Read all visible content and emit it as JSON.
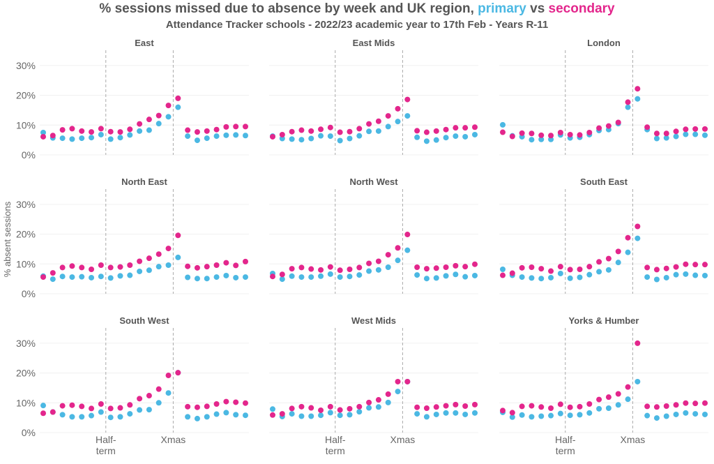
{
  "title_prefix": "% sessions missed due to absence by week and UK region, ",
  "title_primary": "primary",
  "title_vs": " vs ",
  "title_secondary": "secondary",
  "subtitle": "Attendance Tracker schools - 2022/23 academic year to 17th Feb - Years R-11",
  "colors": {
    "primary": "#4bb8e3",
    "secondary": "#e3268c",
    "title_text": "#555555",
    "divider": "#aaaaaa"
  },
  "chart_data": {
    "type": "scatter",
    "ylabel": "% absent sessions",
    "ylim": [
      0,
      30
    ],
    "yticks": [
      0,
      10,
      20,
      30
    ],
    "ytick_labels": [
      "0%",
      "10%",
      "20%",
      "30%"
    ],
    "x_week_range": [
      1,
      22
    ],
    "vertical_lines_at_week": [
      7.5,
      14.5
    ],
    "xtick_labels": [
      {
        "week": 7.5,
        "lines": [
          "Half-",
          "term"
        ]
      },
      {
        "week": 14.5,
        "lines": [
          "Xmas"
        ]
      }
    ],
    "weeks": [
      1,
      2,
      3,
      4,
      5,
      6,
      7,
      8,
      9,
      10,
      11,
      12,
      13,
      14,
      15,
      16,
      17,
      18,
      19,
      20,
      21,
      22
    ],
    "panels": [
      {
        "region": "East",
        "primary": [
          7.5,
          5.7,
          5.6,
          5.3,
          5.6,
          5.8,
          6.8,
          5.3,
          5.8,
          6.7,
          8.0,
          8.3,
          10.5,
          12.8,
          16.0,
          6.3,
          4.9,
          5.6,
          6.3,
          6.6,
          6.7,
          6.5
        ],
        "secondary": [
          6.1,
          6.5,
          8.4,
          8.8,
          8.0,
          7.7,
          8.8,
          7.8,
          7.7,
          8.6,
          10.4,
          11.9,
          13.2,
          16.6,
          19.0,
          8.3,
          7.7,
          8.0,
          8.5,
          9.4,
          9.5,
          9.5
        ]
      },
      {
        "region": "East Mids",
        "primary": [
          6.3,
          5.5,
          5.3,
          5.1,
          5.5,
          6.4,
          6.3,
          4.8,
          5.5,
          6.4,
          7.9,
          8.0,
          9.5,
          11.2,
          13.1,
          5.9,
          4.6,
          5.0,
          5.8,
          6.3,
          6.1,
          6.8
        ],
        "secondary": [
          6.1,
          6.8,
          7.8,
          8.3,
          8.0,
          8.6,
          9.2,
          7.6,
          7.8,
          8.8,
          10.4,
          11.3,
          13.1,
          15.5,
          18.6,
          8.1,
          7.6,
          8.0,
          8.5,
          9.1,
          9.1,
          9.3
        ]
      },
      {
        "region": "London",
        "primary": [
          10.1,
          6.4,
          6.1,
          5.1,
          5.2,
          5.2,
          6.7,
          5.7,
          5.9,
          6.8,
          8.2,
          8.5,
          10.5,
          16.0,
          18.8,
          8.5,
          5.5,
          5.7,
          6.2,
          6.9,
          6.9,
          6.6
        ],
        "secondary": [
          7.6,
          6.2,
          7.3,
          7.2,
          6.6,
          6.5,
          7.5,
          6.8,
          6.7,
          7.5,
          9.0,
          9.7,
          10.9,
          17.7,
          22.2,
          9.3,
          7.2,
          7.2,
          7.9,
          8.6,
          8.7,
          8.7
        ]
      },
      {
        "region": "North East",
        "primary": [
          5.9,
          4.9,
          5.8,
          5.6,
          5.7,
          5.4,
          5.8,
          5.3,
          6.0,
          6.2,
          7.5,
          7.9,
          9.1,
          9.6,
          12.2,
          5.5,
          5.1,
          5.1,
          5.6,
          6.1,
          5.4,
          5.6
        ],
        "secondary": [
          5.6,
          7.0,
          8.8,
          9.3,
          8.8,
          8.2,
          9.6,
          8.8,
          9.0,
          9.6,
          10.9,
          11.9,
          13.3,
          15.2,
          19.6,
          9.2,
          8.7,
          9.1,
          9.6,
          10.4,
          9.5,
          10.8
        ]
      },
      {
        "region": "North West",
        "primary": [
          6.8,
          4.9,
          5.9,
          5.6,
          5.6,
          5.9,
          6.6,
          5.6,
          5.8,
          6.3,
          7.6,
          8.0,
          8.9,
          11.2,
          14.6,
          6.3,
          5.1,
          5.3,
          6.0,
          6.5,
          5.7,
          6.1
        ],
        "secondary": [
          5.8,
          6.5,
          8.4,
          8.8,
          8.3,
          8.0,
          9.0,
          7.9,
          8.2,
          8.8,
          10.2,
          10.9,
          13.1,
          15.4,
          19.9,
          8.9,
          8.4,
          8.6,
          8.9,
          9.4,
          9.1,
          9.9
        ]
      },
      {
        "region": "South East",
        "primary": [
          8.2,
          6.2,
          5.6,
          5.3,
          5.1,
          5.4,
          6.8,
          5.2,
          5.5,
          6.4,
          7.4,
          8.0,
          10.5,
          13.9,
          18.6,
          5.6,
          4.8,
          5.4,
          6.4,
          6.6,
          6.2,
          6.1
        ],
        "secondary": [
          6.2,
          6.9,
          8.7,
          8.9,
          8.4,
          7.6,
          9.1,
          8.1,
          8.2,
          9.1,
          10.7,
          11.8,
          14.2,
          18.8,
          22.6,
          8.8,
          8.1,
          8.5,
          9.0,
          9.9,
          9.8,
          9.8
        ]
      },
      {
        "region": "South West",
        "primary": [
          9.1,
          6.9,
          6.0,
          5.3,
          5.3,
          5.7,
          6.9,
          5.1,
          5.3,
          6.3,
          7.6,
          7.7,
          10.0,
          13.3,
          20.1,
          5.3,
          4.7,
          5.3,
          6.2,
          6.7,
          6.0,
          5.8
        ],
        "secondary": [
          6.5,
          6.9,
          9.0,
          9.2,
          8.8,
          8.1,
          9.6,
          8.1,
          8.3,
          9.3,
          11.4,
          12.4,
          14.6,
          19.2,
          20.1,
          8.7,
          8.5,
          8.8,
          9.6,
          10.4,
          10.2,
          9.9
        ]
      },
      {
        "region": "West Mids",
        "primary": [
          7.9,
          5.4,
          6.3,
          5.5,
          5.5,
          5.8,
          6.7,
          5.8,
          6.0,
          7.0,
          8.3,
          8.6,
          10.1,
          13.8,
          17.1,
          6.3,
          5.3,
          6.1,
          6.6,
          6.6,
          6.1,
          6.6
        ],
        "secondary": [
          5.9,
          6.3,
          8.1,
          8.7,
          8.3,
          7.5,
          8.7,
          7.6,
          8.0,
          8.7,
          10.1,
          11.0,
          12.9,
          17.1,
          17.1,
          8.5,
          8.2,
          8.6,
          9.0,
          9.4,
          8.9,
          9.4
        ]
      },
      {
        "region": "Yorks & Humber",
        "primary": [
          6.8,
          5.2,
          5.9,
          5.3,
          5.5,
          5.7,
          6.4,
          5.8,
          6.0,
          6.6,
          8.0,
          8.2,
          9.3,
          11.2,
          17.1,
          5.7,
          4.9,
          5.5,
          6.1,
          6.6,
          6.3,
          6.1
        ],
        "secondary": [
          7.4,
          6.7,
          8.8,
          9.0,
          8.6,
          8.2,
          9.5,
          8.5,
          8.7,
          9.6,
          11.1,
          11.9,
          13.0,
          15.3,
          30.0,
          8.8,
          8.6,
          8.9,
          9.3,
          9.9,
          9.8,
          9.9
        ]
      }
    ]
  }
}
